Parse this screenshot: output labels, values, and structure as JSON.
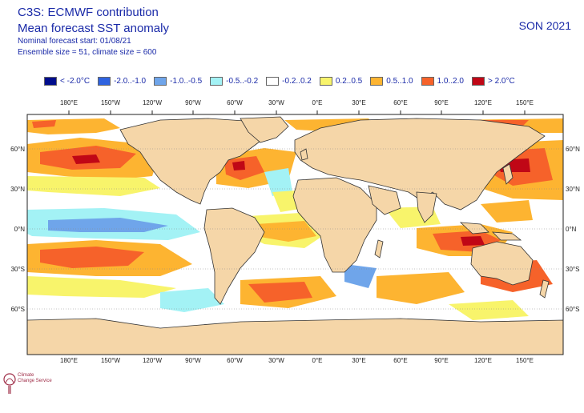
{
  "header": {
    "title_line1": "C3S: ECMWF contribution",
    "title_line2": "Mean forecast SST anomaly",
    "start": "Nominal forecast start: 01/08/21",
    "ensemble": "Ensemble size = 51, climate size = 600",
    "season": "SON 2021"
  },
  "legend": [
    {
      "label": "< -2.0°C",
      "color": "#000d8c"
    },
    {
      "label": "-2.0..-1.0",
      "color": "#2f63e0"
    },
    {
      "label": "-1.0..-0.5",
      "color": "#6fa5ea"
    },
    {
      "label": "-0.5..-0.2",
      "color": "#a3f2f5"
    },
    {
      "label": "-0.2..0.2",
      "color": "#ffffff"
    },
    {
      "label": "0.2..0.5",
      "color": "#f8f46b"
    },
    {
      "label": "0.5..1.0",
      "color": "#fdb431"
    },
    {
      "label": "1.0..2.0",
      "color": "#f6622a"
    },
    {
      "label": "> 2.0°C",
      "color": "#c00716"
    }
  ],
  "map": {
    "lon_labels": [
      "180°E",
      "150°W",
      "120°W",
      "90°W",
      "60°W",
      "30°W",
      "0°E",
      "30°E",
      "60°E",
      "90°E",
      "120°E",
      "150°E"
    ],
    "lat_labels": [
      "60°N",
      "30°N",
      "0°N",
      "30°S",
      "60°S"
    ],
    "land_color": "#f5d6a8",
    "ocean_color": "#ffffff"
  },
  "logo": {
    "line1": "Climate",
    "line2": "Change Service"
  }
}
